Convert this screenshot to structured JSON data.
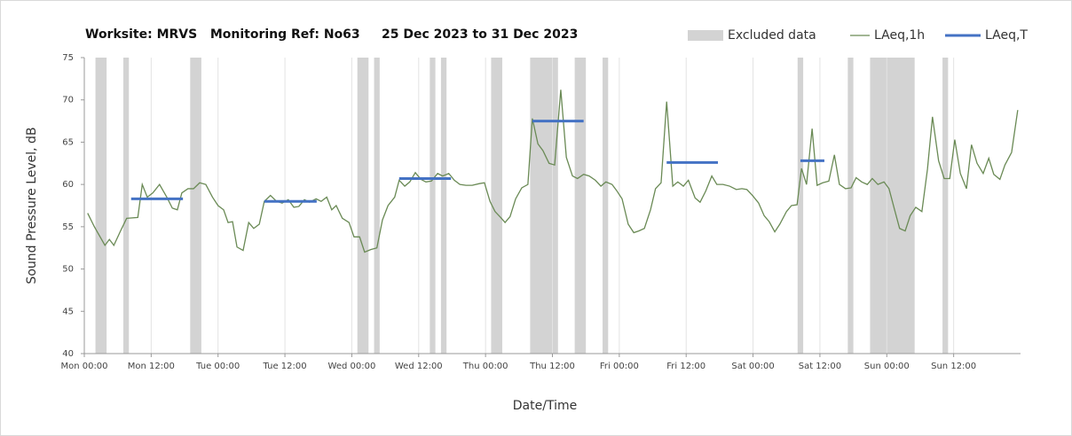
{
  "chart_data": {
    "type": "line",
    "title": "Worksite: MRVS   Monitoring Ref: No63     25 Dec 2023 to 31 Dec 2023",
    "x_label": "Date/Time",
    "y_label": "Sound Pressure Level, dB",
    "xlim": [
      0,
      168
    ],
    "ylim": [
      40,
      75
    ],
    "xticks": [
      {
        "value": 0,
        "label": "Mon 00:00"
      },
      {
        "value": 12,
        "label": "Mon 12:00"
      },
      {
        "value": 24,
        "label": "Tue 00:00"
      },
      {
        "value": 36,
        "label": "Tue 12:00"
      },
      {
        "value": 48,
        "label": "Wed 00:00"
      },
      {
        "value": 60,
        "label": "Wed 12:00"
      },
      {
        "value": 72,
        "label": "Thu 00:00"
      },
      {
        "value": 84,
        "label": "Thu 12:00"
      },
      {
        "value": 96,
        "label": "Fri 00:00"
      },
      {
        "value": 108,
        "label": "Fri 12:00"
      },
      {
        "value": 120,
        "label": "Sat 00:00"
      },
      {
        "value": 132,
        "label": "Sat 12:00"
      },
      {
        "value": 144,
        "label": "Sun 00:00"
      },
      {
        "value": 156,
        "label": "Sun 12:00"
      }
    ],
    "yticks": [
      40,
      45,
      50,
      55,
      60,
      65,
      70,
      75
    ],
    "grid": "x",
    "series": [
      {
        "name": "Excluded data",
        "color": "#d3d3d3",
        "type": "band",
        "ranges": [
          [
            2,
            4
          ],
          [
            7,
            8
          ],
          [
            19,
            21
          ],
          [
            49,
            51
          ],
          [
            52,
            53
          ],
          [
            62,
            63
          ],
          [
            64,
            65
          ],
          [
            73,
            75
          ],
          [
            80,
            85
          ],
          [
            88,
            90
          ],
          [
            93,
            94
          ],
          [
            128,
            129
          ],
          [
            137,
            138
          ],
          [
            141,
            149
          ],
          [
            154,
            155
          ]
        ]
      },
      {
        "name": "LAeq,1h",
        "color": "#6a8a55",
        "type": "line",
        "x": [
          0.6,
          1.8,
          3.7,
          4.5,
          5.3,
          6.5,
          7.6,
          9.6,
          10.4,
          11.3,
          12.3,
          13.5,
          14.8,
          15.8,
          16.7,
          17.5,
          18.6,
          19.6,
          20.7,
          21.8,
          23,
          24,
          25,
          25.8,
          26.6,
          27.4,
          28.5,
          29.5,
          30.4,
          31.4,
          32.3,
          33.4,
          34.5,
          35.5,
          36.6,
          37.6,
          38.5,
          39.5,
          40.4,
          41.6,
          42.5,
          43.5,
          44.4,
          45.2,
          46.3,
          47.5,
          48.4,
          49.4,
          50.3,
          51.4,
          52.5,
          53.5,
          54.5,
          55.7,
          56.5,
          57.5,
          58.4,
          59.4,
          60.4,
          61.3,
          62.3,
          63.4,
          64.3,
          65.4,
          66.4,
          67.4,
          68.5,
          69.6,
          70.9,
          71.8,
          72.8,
          73.7,
          74.7,
          75.5,
          76.4,
          77.4,
          78.5,
          79.6,
          80.4,
          81.4,
          82.3,
          83.4,
          84.4,
          85.5,
          86.5,
          87.6,
          88.5,
          89.6,
          90.6,
          91.7,
          92.7,
          93.6,
          94.7,
          95.5,
          96.5,
          97.6,
          98.6,
          99.5,
          100.5,
          101.6,
          102.5,
          103.5,
          104.5,
          105.6,
          106.5,
          107.5,
          108.4,
          109.6,
          110.5,
          111.5,
          112.6,
          113.5,
          114.6,
          115.8,
          117,
          118,
          118.9,
          119.9,
          121,
          122,
          122.9,
          123.9,
          124.8,
          126,
          126.9,
          127.9,
          128.7,
          129.6,
          130.6,
          131.5,
          132.5,
          133.6,
          134.6,
          135.5,
          136.6,
          137.6,
          138.5,
          139.5,
          140.5,
          141.4,
          142.4,
          143.5,
          144.4,
          145.4,
          146.3,
          147.3,
          148.2,
          149.2,
          150.3,
          151.3,
          152.2,
          153.3,
          154.3,
          155.3,
          156.2,
          157.2,
          158.3,
          159.2,
          160.2,
          161.3,
          162.3,
          163.2,
          164.3,
          165.2,
          166.4,
          167.5
        ],
        "values": [
          56.6,
          55,
          52.8,
          53.5,
          52.8,
          54.5,
          56,
          56.1,
          60,
          58.5,
          59,
          60,
          58.5,
          57.2,
          57,
          59,
          59.5,
          59.5,
          60.2,
          60,
          58.5,
          57.5,
          57,
          55.5,
          55.6,
          52.6,
          52.2,
          55.5,
          54.8,
          55.3,
          58,
          58.7,
          58,
          57.8,
          58.2,
          57.3,
          57.4,
          58.2,
          57.9,
          58.3,
          58,
          58.5,
          57,
          57.5,
          56,
          55.5,
          53.8,
          53.8,
          52,
          52.3,
          52.5,
          55.8,
          57.5,
          58.5,
          60.5,
          59.8,
          60.3,
          61.4,
          60.6,
          60.3,
          60.4,
          61.3,
          61,
          61.3,
          60.5,
          60,
          59.9,
          59.9,
          60.1,
          60.2,
          58,
          56.8,
          56.1,
          55.5,
          56.2,
          58.3,
          59.6,
          60,
          67.8,
          64.8,
          64,
          62.5,
          62.3,
          71.2,
          63.2,
          61,
          60.7,
          61.2,
          61,
          60.5,
          59.8,
          60.3,
          60,
          59.3,
          58.3,
          55.3,
          54.3,
          54.5,
          54.8,
          57,
          59.5,
          60.2,
          69.8,
          59.8,
          60.3,
          59.8,
          60.5,
          58.4,
          57.9,
          59.2,
          61,
          60,
          60,
          59.8,
          59.4,
          59.5,
          59.4,
          58.7,
          57.8,
          56.3,
          55.6,
          54.4,
          55.3,
          56.8,
          57.5,
          57.6,
          61.9,
          60,
          66.6,
          59.9,
          60.2,
          60.4,
          63.5,
          60,
          59.5,
          59.6,
          60.8,
          60.3,
          60,
          60.7,
          60,
          60.3,
          59.5,
          57,
          54.8,
          54.5,
          56.3,
          57.3,
          56.8,
          61.8,
          68,
          62.8,
          60.7,
          60.7,
          65.3,
          61.3,
          59.5,
          64.7,
          62.5,
          61.3,
          63.1,
          61.2,
          60.6,
          62.3,
          63.8,
          68.8
        ]
      },
      {
        "name": "LAeq,T",
        "color": "#4472c4",
        "type": "segments",
        "x_start": [
          8.4,
          32.3,
          56.5,
          80.4,
          104.5,
          128.5
        ],
        "x_end": [
          17.7,
          41.7,
          65.8,
          89.6,
          113.7,
          132.8
        ],
        "values": [
          58.3,
          58,
          60.7,
          67.5,
          62.6,
          62.8
        ]
      }
    ]
  }
}
